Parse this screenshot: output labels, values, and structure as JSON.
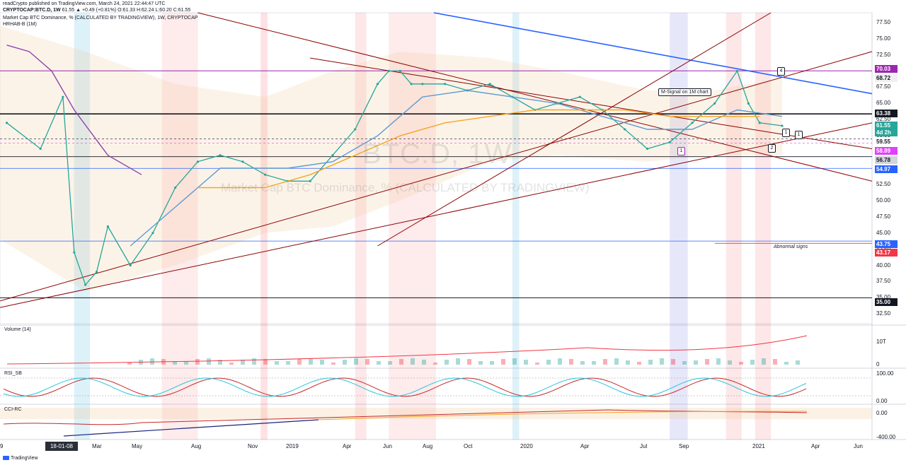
{
  "header": {
    "line1": "readCrypto published on TradingView.com, March 24, 2021 22:44:47 UTC",
    "symbol": "CRYPTOCAP:BTC.D, 1W",
    "ohlc": "61.55 ▲ +0.49 (+0.81%) O:61.33 H:62.24 L:60.20 C:61.55",
    "line3": "Market Cap BTC Dominance, % (CALCULATED BY TRADINGVIEW), 1W, CRYPTOCAP",
    "line4": "HRHAB-B (1M)"
  },
  "watermark": {
    "big": "BTC.D, 1W",
    "sub": "Market Cap BTC Dominance, % (CALCULATED BY TRADINGVIEW)"
  },
  "panes": {
    "volume_label": "Volume (14)",
    "rsi_label": "RSI_SB",
    "cci_label": "CCI-RC"
  },
  "annotations": {
    "msignal": "M-Signal on 1M chart",
    "abnormal": "Abnormal signs",
    "num1a": "1",
    "num1b": "1",
    "num1c": "1",
    "num2": "2",
    "num4": "4"
  },
  "price_levels": [
    {
      "label": "70.03",
      "value": 70.03,
      "bg": "#9c27b0",
      "fg": "#ffffff"
    },
    {
      "label": "68.72",
      "value": 68.72,
      "bg": "#f0f0f0",
      "fg": "#131722"
    },
    {
      "label": "63.38",
      "value": 63.38,
      "bg": "#131722",
      "fg": "#ffffff"
    },
    {
      "label": "61.55",
      "value": 61.55,
      "bg": "#26a69a",
      "fg": "#ffffff"
    },
    {
      "label": "4d 2h",
      "value": 60.5,
      "bg": "#26a69a",
      "fg": "#ffffff"
    },
    {
      "label": "59.55",
      "value": 59.55,
      "bg": "#ffffff",
      "fg": "#131722"
    },
    {
      "label": "58.89",
      "value": 58.89,
      "bg": "#e040fb",
      "fg": "#ffffff"
    },
    {
      "label": "56.78",
      "value": 56.78,
      "bg": "#d1d4dc",
      "fg": "#131722"
    },
    {
      "label": "54.97",
      "value": 54.97,
      "bg": "#2962ff",
      "fg": "#ffffff"
    },
    {
      "label": "43.75",
      "value": 43.75,
      "bg": "#2962ff",
      "fg": "#ffffff"
    },
    {
      "label": "43.17",
      "value": 43.17,
      "bg": "#f23645",
      "fg": "#ffffff"
    },
    {
      "label": "35.00",
      "value": 35.0,
      "bg": "#131722",
      "fg": "#ffffff"
    }
  ],
  "tradingview": "TradingView",
  "chart_data": {
    "type": "line",
    "title": "Market Cap BTC Dominance, % (CALCULATED BY TRADINGVIEW), 1W",
    "xlabel": "",
    "ylabel": "",
    "ylim": [
      31.0,
      79.0
    ],
    "y_ticks": [
      "77.50",
      "75.00",
      "72.50",
      "70.00",
      "67.50",
      "65.00",
      "62.50",
      "60.00",
      "57.50",
      "55.00",
      "52.50",
      "50.00",
      "47.50",
      "45.00",
      "42.50",
      "40.00",
      "37.50",
      "35.00",
      "32.50"
    ],
    "x_ticks": [
      "9",
      "18-01-08",
      "Mar",
      "May",
      "Aug",
      "Nov",
      "2019",
      "Apr",
      "Jun",
      "Aug",
      "Oct",
      "2020",
      "Apr",
      "Jul",
      "Sep",
      "2021",
      "Apr",
      "Jun"
    ],
    "volume_ticks": [
      "10T",
      "0"
    ],
    "rsi_ticks": [
      "100.00",
      "0.00"
    ],
    "cci_ticks": [
      "0.00",
      "-400.00"
    ],
    "series": [
      {
        "name": "BTC.D",
        "color": "#26a69a",
        "x": [
          2017.75,
          2017.9,
          2018.0,
          2018.05,
          2018.1,
          2018.15,
          2018.2,
          2018.3,
          2018.4,
          2018.5,
          2018.6,
          2018.7,
          2018.8,
          2018.9,
          2019.0,
          2019.1,
          2019.2,
          2019.3,
          2019.4,
          2019.45,
          2019.5,
          2019.55,
          2019.6,
          2019.7,
          2019.8,
          2019.9,
          2020.0,
          2020.1,
          2020.2,
          2020.3,
          2020.4,
          2020.5,
          2020.6,
          2020.7,
          2020.8,
          2020.9,
          2021.0,
          2021.05,
          2021.1,
          2021.2
        ],
        "values": [
          62,
          58,
          66,
          42,
          37,
          39,
          46,
          40,
          45,
          52,
          56,
          57,
          56,
          54,
          53,
          53,
          57,
          61,
          68,
          70,
          70,
          68,
          68,
          68,
          67,
          68,
          66,
          64,
          65,
          66,
          64,
          61,
          58,
          59,
          62,
          65,
          70,
          65,
          62,
          61.55
        ]
      },
      {
        "name": "",
        "color": "#5b9bd5",
        "x": [
          2018.3,
          2018.5,
          2018.7,
          2019.0,
          2019.2,
          2019.4,
          2019.6,
          2019.8,
          2020.0,
          2020.2,
          2020.4,
          2020.6,
          2020.8,
          2021.0,
          2021.2
        ],
        "values": [
          43,
          49,
          55,
          55,
          56,
          60,
          66,
          67,
          66,
          65,
          63,
          61,
          61,
          64,
          63
        ]
      },
      {
        "name": "",
        "color": "#f5a623",
        "x": [
          2018.6,
          2018.9,
          2019.1,
          2019.3,
          2019.5,
          2019.7,
          2019.9,
          2020.1,
          2020.3,
          2020.5,
          2020.7,
          2020.9,
          2021.1
        ],
        "values": [
          52,
          52,
          54,
          57,
          60,
          62,
          63,
          64,
          64,
          64,
          63,
          63,
          63
        ]
      },
      {
        "name": "",
        "color": "#8e44ad",
        "x": [
          2017.75,
          2017.85,
          2017.95,
          2018.05,
          2018.2,
          2018.35
        ],
        "values": [
          74,
          73,
          70,
          64,
          57,
          54
        ]
      }
    ]
  }
}
